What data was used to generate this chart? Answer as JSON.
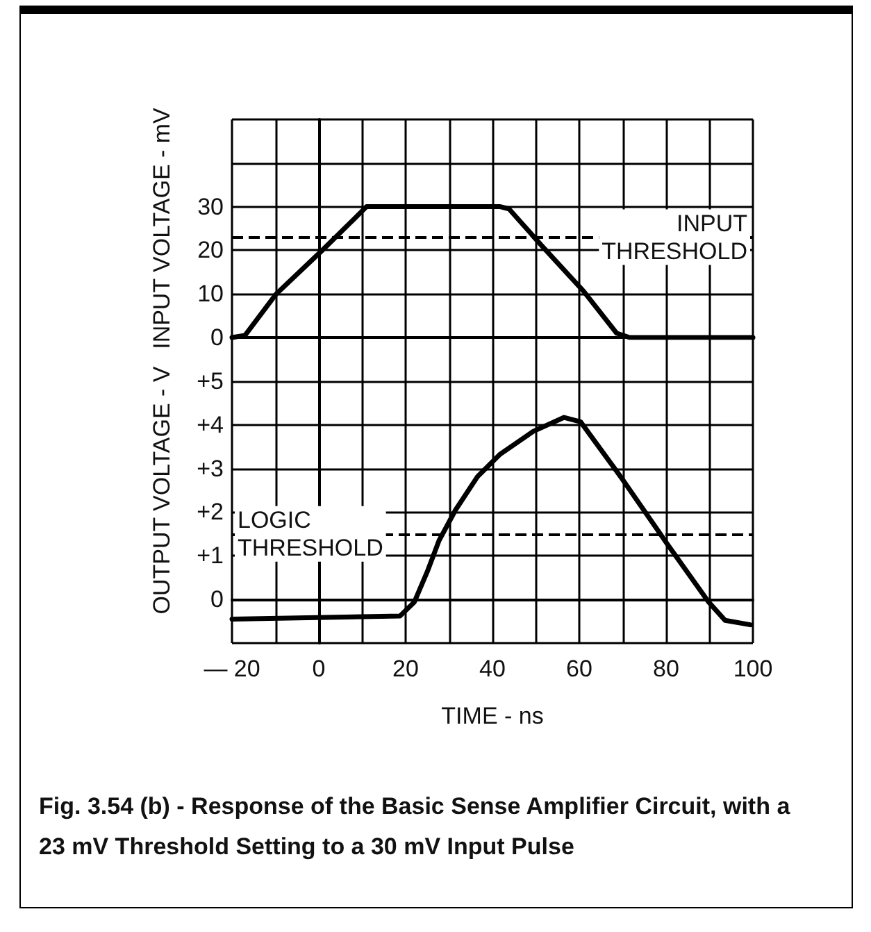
{
  "chart_data": [
    {
      "type": "line",
      "ylabel": "INPUT VOLTAGE - mV",
      "xlim": [
        -20,
        100
      ],
      "xticks": [
        -20,
        {
          "value": -10,
          "label": null
        },
        0,
        {
          "value": 10,
          "label": null
        },
        20,
        {
          "value": 30,
          "label": null
        },
        40,
        {
          "value": 50,
          "label": null
        },
        60,
        {
          "value": 70,
          "label": null
        },
        80,
        {
          "value": 90,
          "label": null
        },
        100
      ],
      "ylim": [
        0,
        50
      ],
      "yticks": [
        0,
        10,
        20,
        30,
        {
          "value": 40,
          "label": null
        },
        {
          "value": 50,
          "label": null
        }
      ],
      "tick_labels": "y",
      "grid": true,
      "marker": "none",
      "line_style": "solid",
      "series": [
        {
          "color": "#000000",
          "x": [
            -20,
            -17,
            -9.8,
            0.8,
            11,
            41.8,
            43.8,
            51.4,
            61,
            68.6,
            71.6,
            100
          ],
          "values": [
            0,
            0.5,
            10,
            20,
            30,
            30,
            29.5,
            21,
            10.6,
            1,
            0,
            0
          ]
        }
      ],
      "ref_lines": [
        {
          "axis": "y",
          "value": 23,
          "label": "INPUT THRESHOLD",
          "color": "#000000",
          "line_style": "dashed"
        }
      ]
    },
    {
      "type": "line",
      "ylabel": "OUTPUT VOLTAGE - V",
      "xlabel": "TIME - ns",
      "xlim": [
        -20,
        100
      ],
      "xticks": [
        {
          "value": -20,
          "label": "— 20"
        },
        {
          "value": -10,
          "label": null
        },
        0,
        {
          "value": 10,
          "label": null
        },
        20,
        {
          "value": 30,
          "label": null
        },
        40,
        {
          "value": 50,
          "label": null
        },
        60,
        {
          "value": 70,
          "label": null
        },
        80,
        {
          "value": 90,
          "label": null
        },
        100
      ],
      "ylim": [
        -1,
        6
      ],
      "yticks": [
        {
          "value": -1,
          "label": null
        },
        0,
        {
          "value": 1,
          "label": "+1"
        },
        {
          "value": 2,
          "label": "+2"
        },
        {
          "value": 3,
          "label": "+3"
        },
        {
          "value": 4,
          "label": "+4"
        },
        {
          "value": 5,
          "label": "+5"
        },
        {
          "value": 6,
          "label": null
        }
      ],
      "grid": true,
      "marker": "none",
      "line_style": "solid",
      "series": [
        {
          "color": "#000000",
          "x": [
            -20,
            18.7,
            22,
            25,
            27.7,
            31.5,
            36.6,
            41.8,
            49.4,
            56.5,
            60.3,
            69.9,
            80.2,
            89.8,
            93.6,
            99.4
          ],
          "values": [
            -0.45,
            -0.38,
            -0.06,
            0.64,
            1.35,
            2.05,
            2.82,
            3.33,
            3.85,
            4.17,
            4.07,
            2.76,
            1.28,
            -0.06,
            -0.48,
            -0.58
          ]
        }
      ],
      "ref_lines": [
        {
          "axis": "y",
          "value": 1.5,
          "label": "LOGIC THRESHOLD",
          "color": "#000000",
          "line_style": "dashed"
        }
      ],
      "annotations": [
        "Fig. 3.54 (b) - Response of the Basic Sense Amplifier Circuit, with a 23 mV Threshold Setting to a 30 mV Input Pulse"
      ]
    }
  ]
}
